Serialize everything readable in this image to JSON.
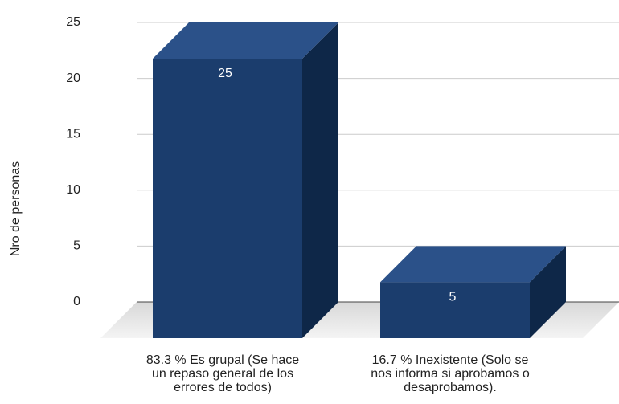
{
  "chart_data": {
    "type": "bar3d",
    "y_label": "Nro de personas",
    "categories": [
      "83.3 % Es  grupal (Se hace\nun repaso general de los\nerrores de todos)",
      "16.7 % Inexistente (Solo se\nnos informa si aprobamos o\ndesaprobamos)."
    ],
    "values": [
      25,
      5
    ],
    "color": "#1b3d6d",
    "ylim": [
      0,
      25
    ],
    "yticks": [
      0,
      5,
      10,
      15,
      20,
      25
    ],
    "grid": true
  }
}
